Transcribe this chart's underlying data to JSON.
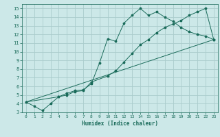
{
  "xlabel": "Humidex (Indice chaleur)",
  "bg_color": "#cce8e8",
  "grid_color": "#aacccc",
  "line_color": "#1a6b5a",
  "xlim": [
    -0.5,
    23.5
  ],
  "ylim": [
    3,
    15.5
  ],
  "xticks": [
    0,
    1,
    2,
    3,
    4,
    5,
    6,
    7,
    8,
    9,
    10,
    11,
    12,
    13,
    14,
    15,
    16,
    17,
    18,
    19,
    20,
    21,
    22,
    23
  ],
  "yticks": [
    3,
    4,
    5,
    6,
    7,
    8,
    9,
    10,
    11,
    12,
    13,
    14,
    15
  ],
  "line1_x": [
    0,
    1,
    2,
    3,
    4,
    5,
    6,
    7,
    8,
    9,
    10,
    11,
    12,
    13,
    14,
    15,
    16,
    17,
    18,
    19,
    20,
    21,
    22,
    23
  ],
  "line1_y": [
    4.2,
    3.7,
    3.2,
    4.0,
    4.8,
    5.2,
    5.5,
    5.6,
    6.3,
    8.7,
    11.5,
    11.2,
    13.3,
    14.2,
    15.0,
    14.2,
    14.6,
    14.0,
    13.5,
    12.8,
    12.3,
    12.0,
    11.8,
    11.4
  ],
  "line2_x": [
    0,
    4,
    5,
    6,
    7,
    8,
    10,
    11,
    12,
    13,
    14,
    15,
    16,
    17,
    18,
    19,
    20,
    21,
    22,
    23
  ],
  "line2_y": [
    4.2,
    4.8,
    5.0,
    5.4,
    5.5,
    6.5,
    7.2,
    7.8,
    8.8,
    9.8,
    10.8,
    11.4,
    12.2,
    12.8,
    13.2,
    13.6,
    14.2,
    14.6,
    15.0,
    11.4
  ],
  "line3_x": [
    0,
    23
  ],
  "line3_y": [
    4.2,
    11.4
  ]
}
